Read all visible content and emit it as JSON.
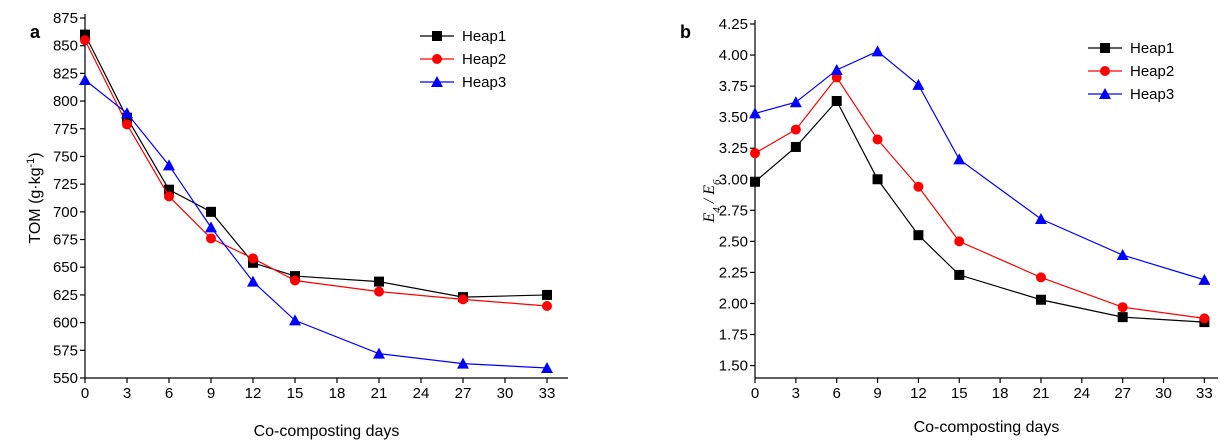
{
  "chart_data": [
    {
      "panel": "a",
      "type": "line",
      "xlabel": "Co-composting days",
      "ylabel_main": "TOM (g·kg",
      "ylabel_sup": "-1",
      "ylabel_end": ")",
      "x": [
        0,
        3,
        6,
        9,
        12,
        15,
        21,
        27,
        33
      ],
      "xticks": [
        0,
        3,
        6,
        9,
        12,
        15,
        18,
        21,
        24,
        27,
        30,
        33
      ],
      "yticks": [
        550,
        575,
        600,
        625,
        650,
        675,
        700,
        725,
        750,
        775,
        800,
        825,
        850,
        875
      ],
      "xlim": [
        0,
        34.5
      ],
      "ylim": [
        550,
        875
      ],
      "legend_position": "top-right",
      "grid": false,
      "series": [
        {
          "name": "Heap1",
          "color": "#000000",
          "marker": "square",
          "values": [
            860,
            785,
            720,
            700,
            654,
            642,
            637,
            623,
            625
          ]
        },
        {
          "name": "Heap2",
          "color": "#ff0000",
          "marker": "circle",
          "values": [
            855,
            779,
            714,
            676,
            658,
            638,
            628,
            621,
            615
          ]
        },
        {
          "name": "Heap3",
          "color": "#0000ff",
          "marker": "triangle",
          "values": [
            819,
            789,
            742,
            686,
            637,
            602,
            572,
            563,
            559
          ]
        }
      ]
    },
    {
      "panel": "b",
      "type": "line",
      "xlabel": "Co-composting days",
      "ylabel_parts": [
        "E",
        "4",
        " / ",
        "E",
        "6"
      ],
      "x": [
        0,
        3,
        6,
        9,
        12,
        15,
        21,
        27,
        33
      ],
      "xticks": [
        0,
        3,
        6,
        9,
        12,
        15,
        18,
        21,
        24,
        27,
        30,
        33
      ],
      "yticks": [
        "1.50",
        "1.75",
        "2.00",
        "2.25",
        "2.50",
        "2.75",
        "3.00",
        "3.25",
        "3.50",
        "3.75",
        "4.00",
        "4.25"
      ],
      "xlim": [
        0,
        34
      ],
      "ylim": [
        1.4,
        4.25
      ],
      "legend_position": "top-right",
      "grid": false,
      "series": [
        {
          "name": "Heap1",
          "color": "#000000",
          "marker": "square",
          "values": [
            2.98,
            3.26,
            3.63,
            3.0,
            2.55,
            2.23,
            2.03,
            1.89,
            1.85
          ]
        },
        {
          "name": "Heap2",
          "color": "#ff0000",
          "marker": "circle",
          "values": [
            3.21,
            3.4,
            3.82,
            3.32,
            2.94,
            2.5,
            2.21,
            1.97,
            1.88
          ]
        },
        {
          "name": "Heap3",
          "color": "#0000ff",
          "marker": "triangle",
          "values": [
            3.53,
            3.62,
            3.88,
            4.03,
            3.76,
            3.16,
            2.68,
            2.39,
            2.19
          ]
        }
      ]
    }
  ]
}
